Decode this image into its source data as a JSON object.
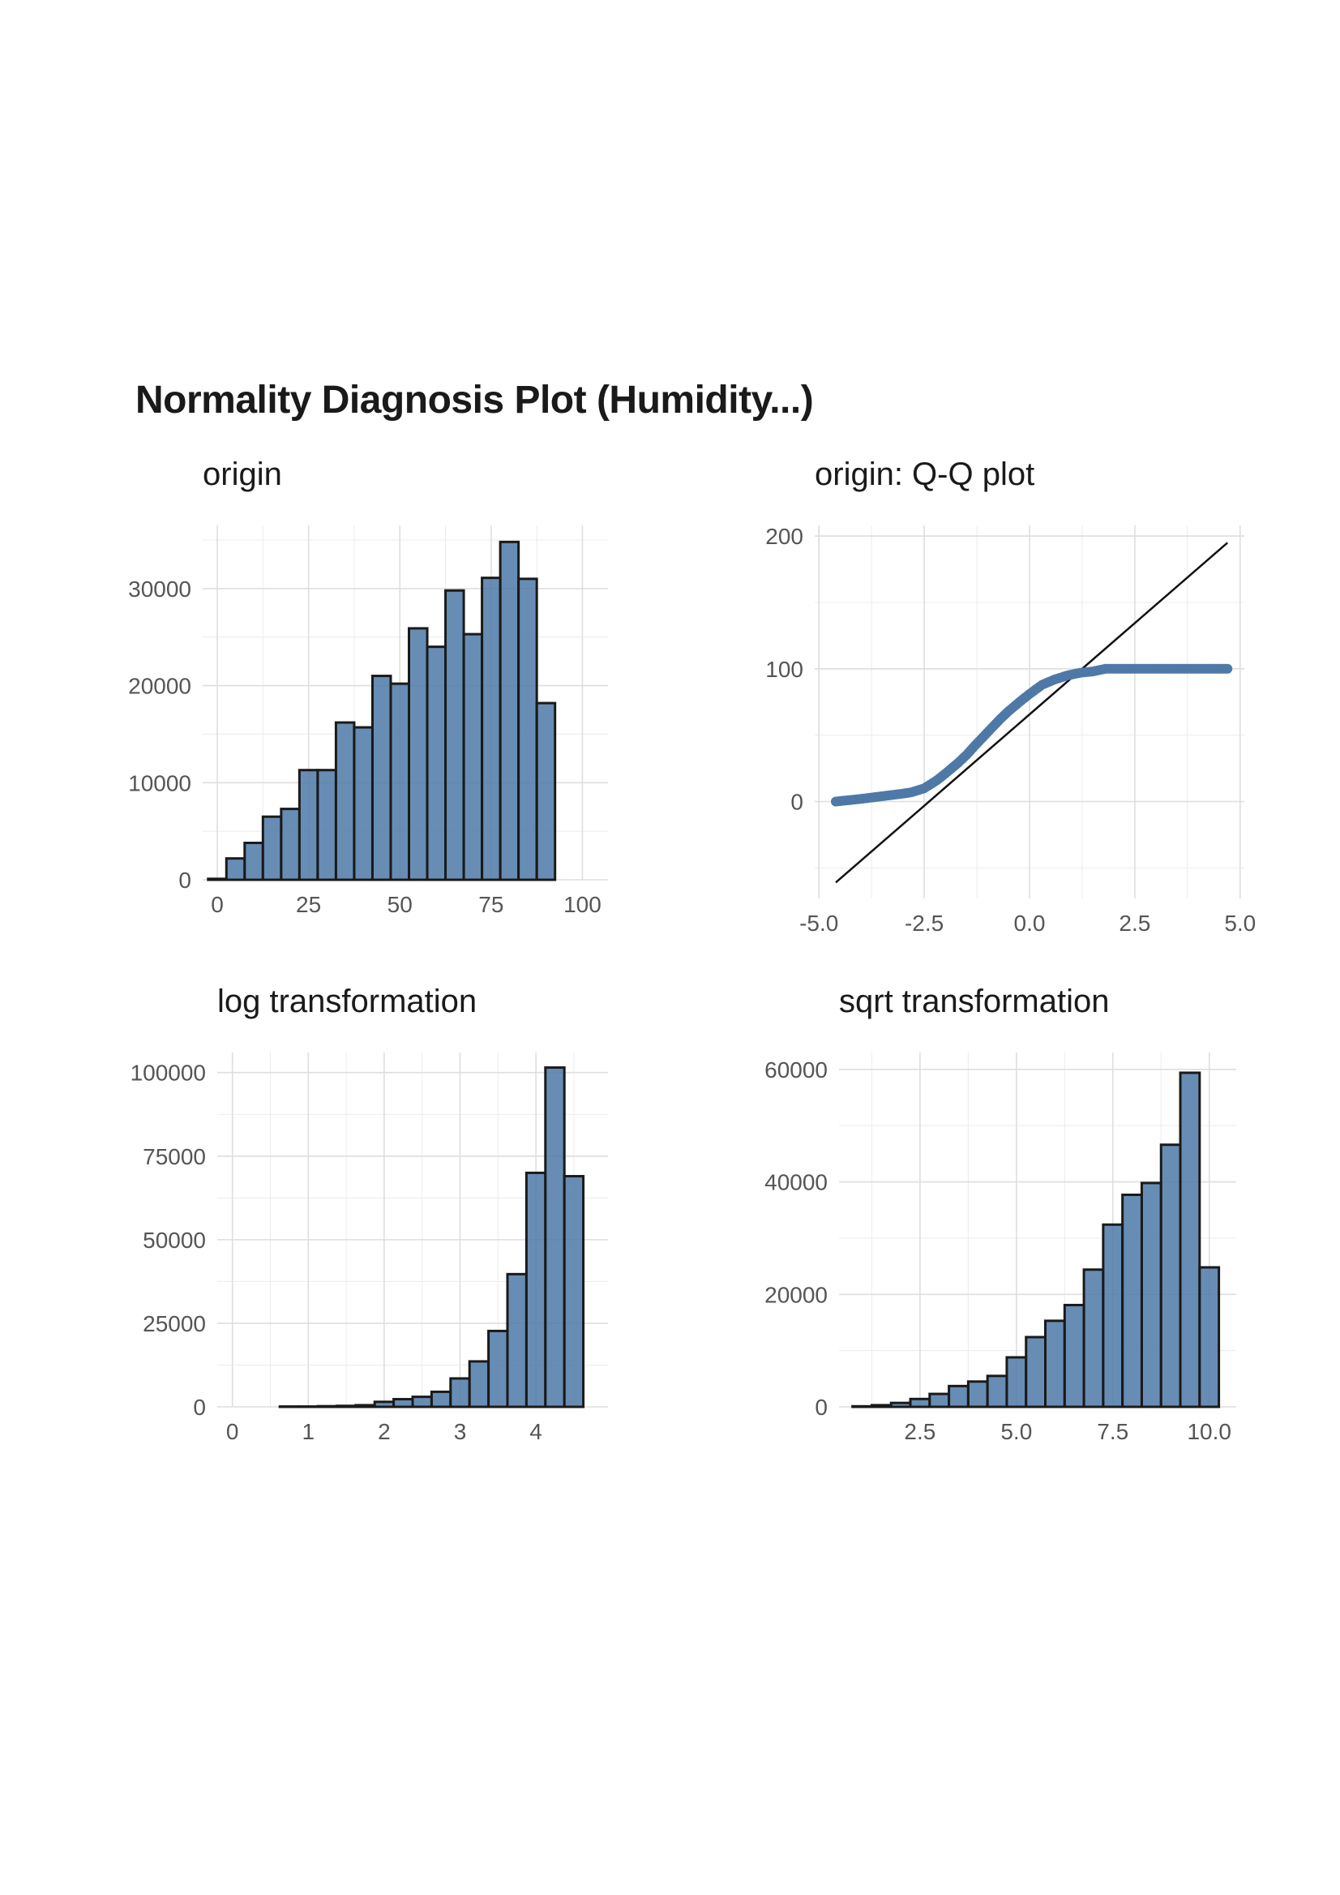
{
  "title": "Normality Diagnosis Plot (Humidity...)",
  "chart_data": [
    {
      "id": "origin",
      "type": "bar",
      "title": "origin",
      "xlabel": "",
      "ylabel": "",
      "bin_width": 5,
      "bin_centers": [
        0,
        5,
        10,
        15,
        20,
        25,
        30,
        35,
        40,
        45,
        50,
        55,
        60,
        65,
        70,
        75,
        80,
        85,
        90,
        95,
        100
      ],
      "values": [
        100,
        2200,
        3800,
        6500,
        7300,
        11300,
        11300,
        16200,
        15700,
        21000,
        20200,
        25900,
        24000,
        29800,
        25300,
        31100,
        34800,
        31000,
        18200,
        0,
        0
      ],
      "xlim": [
        -4,
        107
      ],
      "ylim": [
        0,
        36500
      ],
      "xticks": [
        0,
        25,
        50,
        75,
        100
      ],
      "xtick_labels": [
        "0",
        "25",
        "50",
        "75",
        "100"
      ],
      "yticks": [
        0,
        10000,
        20000,
        30000
      ],
      "ytick_labels": [
        "0",
        "10000",
        "20000",
        "30000"
      ],
      "grid": true
    },
    {
      "id": "qq",
      "type": "scatter",
      "title": "origin: Q-Q plot",
      "xlabel": "",
      "ylabel": "",
      "points": [
        [
          -4.6,
          0
        ],
        [
          -4.3,
          1
        ],
        [
          -4.0,
          2
        ],
        [
          -3.5,
          4
        ],
        [
          -3.0,
          6
        ],
        [
          -2.8,
          7
        ],
        [
          -2.5,
          10
        ],
        [
          -2.2,
          16
        ],
        [
          -2.0,
          21
        ],
        [
          -1.7,
          29
        ],
        [
          -1.5,
          35
        ],
        [
          -1.3,
          42
        ],
        [
          -1.0,
          52
        ],
        [
          -0.7,
          62
        ],
        [
          -0.5,
          68
        ],
        [
          -0.2,
          76
        ],
        [
          0.0,
          81
        ],
        [
          0.3,
          88
        ],
        [
          0.6,
          92
        ],
        [
          0.9,
          95
        ],
        [
          1.2,
          97
        ],
        [
          1.5,
          98
        ],
        [
          1.8,
          100
        ],
        [
          2.5,
          100
        ],
        [
          3.0,
          100
        ],
        [
          3.5,
          100
        ],
        [
          4.0,
          100
        ],
        [
          4.5,
          100
        ],
        [
          4.7,
          100
        ]
      ],
      "reference_line": [
        [
          -4.6,
          -61
        ],
        [
          4.7,
          195
        ]
      ],
      "xlim": [
        -5.1,
        5.1
      ],
      "ylim": [
        -73,
        208
      ],
      "xticks": [
        -5,
        -2.5,
        0,
        2.5,
        5
      ],
      "xtick_labels": [
        "-5.0",
        "-2.5",
        "0.0",
        "2.5",
        "5.0"
      ],
      "yticks": [
        0,
        100,
        200
      ],
      "ytick_labels": [
        "0",
        "100",
        "200"
      ],
      "grid": true
    },
    {
      "id": "log",
      "type": "bar",
      "title": "log transformation",
      "xlabel": "",
      "ylabel": "",
      "bin_width": 0.25,
      "bin_centers": [
        0.0,
        0.25,
        0.5,
        0.75,
        1.0,
        1.25,
        1.5,
        1.75,
        2.0,
        2.25,
        2.5,
        2.75,
        3.0,
        3.25,
        3.5,
        3.75,
        4.0,
        4.25,
        4.5
      ],
      "values": [
        0,
        0,
        0,
        100,
        100,
        200,
        300,
        500,
        1500,
        2300,
        3000,
        4500,
        8500,
        13600,
        22700,
        39700,
        70000,
        101500,
        69000
      ],
      "xlim": [
        -0.2,
        4.95
      ],
      "ylim": [
        0,
        106000
      ],
      "xticks": [
        0,
        1,
        2,
        3,
        4
      ],
      "xtick_labels": [
        "0",
        "1",
        "2",
        "3",
        "4"
      ],
      "yticks": [
        0,
        25000,
        50000,
        75000,
        100000
      ],
      "ytick_labels": [
        "0",
        "25000",
        "50000",
        "75000",
        "100000"
      ],
      "grid": true
    },
    {
      "id": "sqrt",
      "type": "bar",
      "title": "sqrt transformation",
      "xlabel": "",
      "ylabel": "",
      "bin_width": 0.5,
      "bin_centers": [
        1.0,
        1.5,
        2.0,
        2.5,
        3.0,
        3.5,
        4.0,
        4.5,
        5.0,
        5.5,
        6.0,
        6.5,
        7.0,
        7.5,
        8.0,
        8.5,
        9.0,
        9.5,
        10.0
      ],
      "values": [
        100,
        300,
        700,
        1400,
        2300,
        3700,
        4500,
        5500,
        8800,
        12400,
        15300,
        18100,
        24400,
        32400,
        37700,
        39800,
        46600,
        59400,
        24800
      ],
      "xlim": [
        0.4,
        10.7
      ],
      "ylim": [
        0,
        63000
      ],
      "xticks": [
        2.5,
        5,
        7.5,
        10
      ],
      "xtick_labels": [
        "2.5",
        "5.0",
        "7.5",
        "10.0"
      ],
      "yticks": [
        0,
        20000,
        40000,
        60000
      ],
      "ytick_labels": [
        "0",
        "20000",
        "40000",
        "60000"
      ],
      "grid": true
    }
  ]
}
